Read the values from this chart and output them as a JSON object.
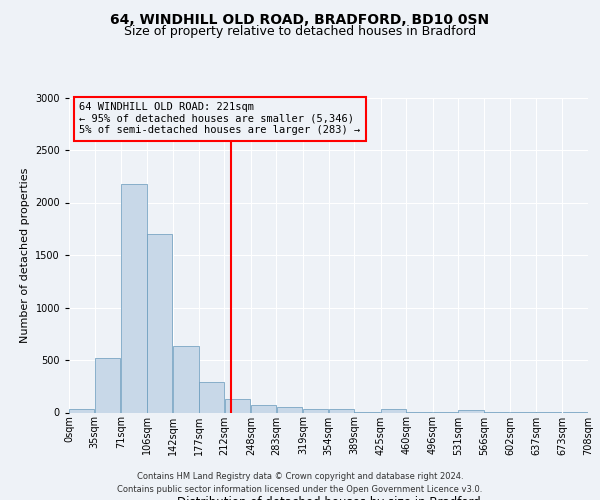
{
  "title": "64, WINDHILL OLD ROAD, BRADFORD, BD10 0SN",
  "subtitle": "Size of property relative to detached houses in Bradford",
  "xlabel": "Distribution of detached houses by size in Bradford",
  "ylabel": "Number of detached properties",
  "footer1": "Contains HM Land Registry data © Crown copyright and database right 2024.",
  "footer2": "Contains public sector information licensed under the Open Government Licence v3.0.",
  "annotation_line1": "64 WINDHILL OLD ROAD: 221sqm",
  "annotation_line2": "← 95% of detached houses are smaller (5,346)",
  "annotation_line3": "5% of semi-detached houses are larger (283) →",
  "bar_color": "#c8d8e8",
  "bar_edge_color": "#6699bb",
  "red_line_x": 221,
  "bins": [
    0,
    35,
    71,
    106,
    142,
    177,
    212,
    248,
    283,
    319,
    354,
    389,
    425,
    460,
    496,
    531,
    566,
    602,
    637,
    673,
    708
  ],
  "values": [
    30,
    520,
    2180,
    1700,
    630,
    290,
    130,
    75,
    55,
    35,
    35,
    2,
    30,
    2,
    2,
    25,
    5,
    2,
    2,
    2
  ],
  "tick_labels": [
    "0sqm",
    "35sqm",
    "71sqm",
    "106sqm",
    "142sqm",
    "177sqm",
    "212sqm",
    "248sqm",
    "283sqm",
    "319sqm",
    "354sqm",
    "389sqm",
    "425sqm",
    "460sqm",
    "496sqm",
    "531sqm",
    "566sqm",
    "602sqm",
    "637sqm",
    "673sqm",
    "708sqm"
  ],
  "ylim": [
    0,
    3000
  ],
  "yticks": [
    0,
    500,
    1000,
    1500,
    2000,
    2500,
    3000
  ],
  "bg_color": "#eef2f7",
  "grid_color": "#ffffff",
  "title_fontsize": 10,
  "subtitle_fontsize": 9,
  "ylabel_fontsize": 8,
  "xlabel_fontsize": 8.5,
  "tick_fontsize": 7,
  "footer_fontsize": 6,
  "annot_fontsize": 7.5
}
